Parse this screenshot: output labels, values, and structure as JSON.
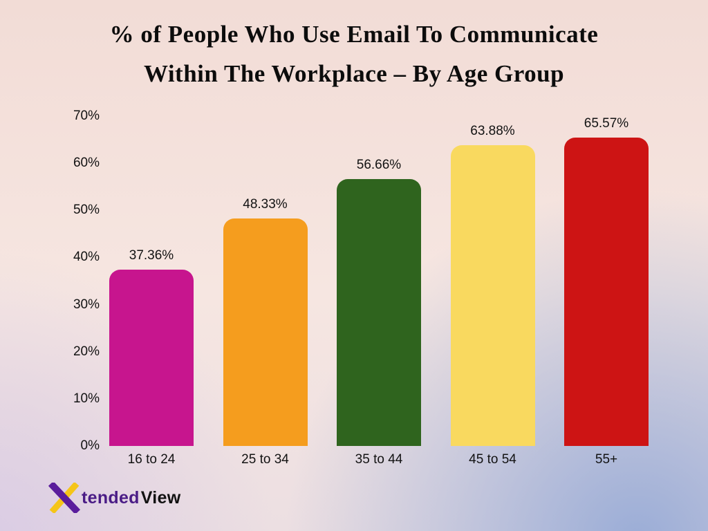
{
  "page": {
    "title_line1": "% of People Who Use Email To Communicate",
    "title_line2": "Within The Workplace – By Age Group"
  },
  "chart_data": {
    "type": "bar",
    "title": "% of People Who Use Email To Communicate Within The Workplace – By Age Group",
    "categories": [
      "16 to 24",
      "25 to 34",
      "35 to 44",
      "45 to 54",
      "55+"
    ],
    "values": [
      37.36,
      48.33,
      56.66,
      63.88,
      65.57
    ],
    "value_labels": [
      "37.36%",
      "48.33%",
      "56.66%",
      "63.88%",
      "65.57%"
    ],
    "bar_colors": [
      "#c7158e",
      "#f59d1e",
      "#2f641e",
      "#f9d95f",
      "#cd1414"
    ],
    "xlabel": "",
    "ylabel": "",
    "ylim": [
      0,
      70
    ],
    "yticks": [
      "0%",
      "10%",
      "20%",
      "30%",
      "40%",
      "50%",
      "60%",
      "70%"
    ],
    "grid": false,
    "legend": "none"
  },
  "logo": {
    "brand": "XtendedView",
    "tended": "tended",
    "view": "View",
    "x_color": "#5a1d9c",
    "x_accent": "#f5c518"
  }
}
